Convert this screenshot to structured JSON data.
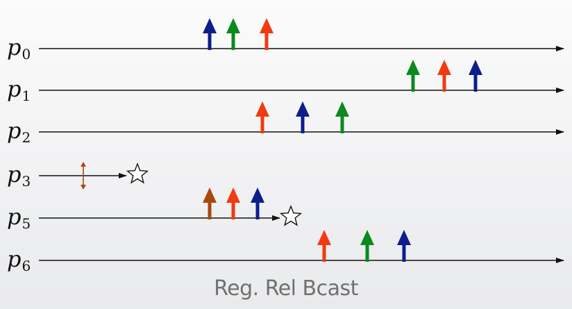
{
  "caption": "Reg. Rel Bcast",
  "colors": {
    "blue": "#0d1e8c",
    "green": "#0a8a1c",
    "red": "#f23a10",
    "brown": "#a8480e",
    "line": "#111111"
  },
  "processes": [
    {
      "symbol": "p",
      "index": "0",
      "line": "full",
      "events": [
        {
          "color": "blue",
          "icon": "up-arrow-icon"
        },
        {
          "color": "green",
          "icon": "up-arrow-icon"
        },
        {
          "color": "red",
          "icon": "up-arrow-icon"
        }
      ]
    },
    {
      "symbol": "p",
      "index": "1",
      "line": "full",
      "events": [
        {
          "color": "green",
          "icon": "up-arrow-icon"
        },
        {
          "color": "red",
          "icon": "up-arrow-icon"
        },
        {
          "color": "blue",
          "icon": "up-arrow-icon"
        }
      ]
    },
    {
      "symbol": "p",
      "index": "2",
      "line": "full",
      "events": [
        {
          "color": "red",
          "icon": "up-arrow-icon"
        },
        {
          "color": "blue",
          "icon": "up-arrow-icon"
        },
        {
          "color": "green",
          "icon": "up-arrow-icon"
        }
      ]
    },
    {
      "symbol": "p",
      "index": "3",
      "line": "crashed",
      "end_icon": "star-icon",
      "events": [
        {
          "color": "brown",
          "icon": "double-arrow-icon"
        }
      ]
    },
    {
      "symbol": "p",
      "index": "5",
      "line": "crashed",
      "end_icon": "star-icon",
      "events": [
        {
          "color": "brown",
          "icon": "up-arrow-icon"
        },
        {
          "color": "red",
          "icon": "up-arrow-icon"
        },
        {
          "color": "blue",
          "icon": "up-arrow-icon"
        }
      ]
    },
    {
      "symbol": "p",
      "index": "6",
      "line": "full",
      "events": [
        {
          "color": "red",
          "icon": "up-arrow-icon"
        },
        {
          "color": "green",
          "icon": "up-arrow-icon"
        },
        {
          "color": "blue",
          "icon": "up-arrow-icon"
        }
      ]
    }
  ]
}
